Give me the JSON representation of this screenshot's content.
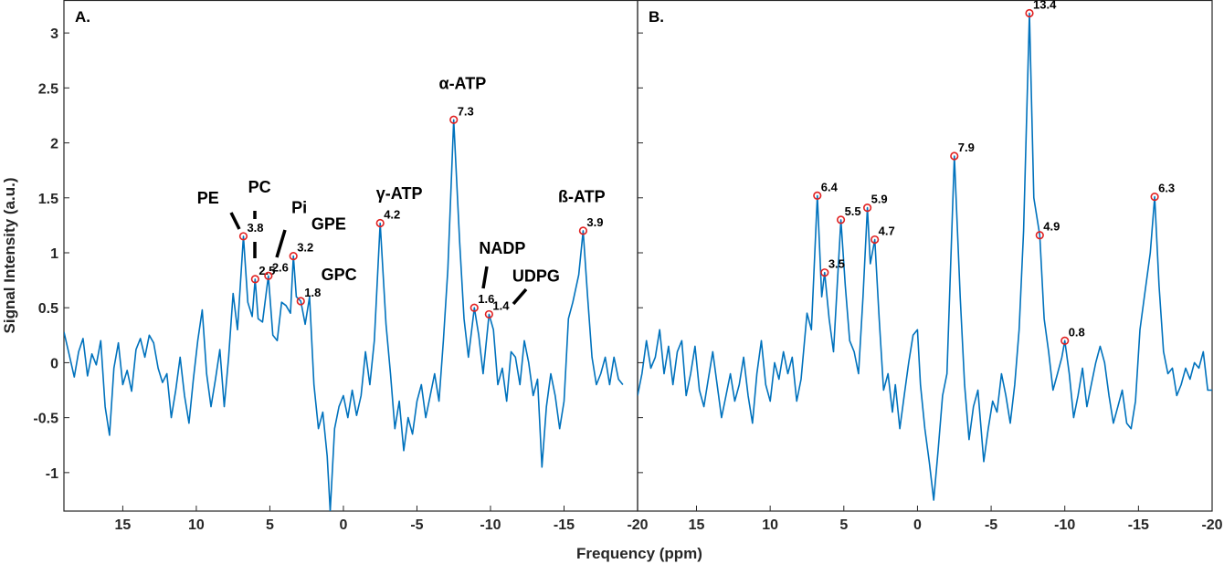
{
  "chart_data": {
    "type": "line",
    "xlabel": "Frequency (ppm)",
    "ylabel": "Signal Intensity (a.u.)",
    "xlim": [
      19,
      -20
    ],
    "ylim": [
      -1.35,
      3.3
    ],
    "x_reversed": true,
    "xticks": [
      15,
      10,
      5,
      0,
      -5,
      -10,
      -15,
      -20
    ],
    "xtick_labels": [
      "15",
      "10",
      "5",
      "0",
      "-5",
      "-10",
      "-15",
      "-20"
    ],
    "yticks": [
      -1,
      -0.5,
      0,
      0.5,
      1,
      1.5,
      2,
      2.5,
      3
    ],
    "ytick_labels": [
      "-1",
      "-0.5",
      "0",
      "0.5",
      "1",
      "1.5",
      "2",
      "2.5",
      "3"
    ],
    "line_color": "#0072BD",
    "marker_color": "#E02020",
    "panels": [
      {
        "label": "A.",
        "peaks": [
          {
            "x": 6.8,
            "y": 1.15,
            "label": "3.8"
          },
          {
            "x": 6.0,
            "y": 0.76,
            "label": "2.5"
          },
          {
            "x": 5.1,
            "y": 0.79,
            "label": "2.6"
          },
          {
            "x": 3.4,
            "y": 0.97,
            "label": "3.2"
          },
          {
            "x": 2.9,
            "y": 0.56,
            "label": "1.8"
          },
          {
            "x": -2.5,
            "y": 1.27,
            "label": "4.2"
          },
          {
            "x": -7.5,
            "y": 2.21,
            "label": "7.3"
          },
          {
            "x": -8.9,
            "y": 0.5,
            "label": "1.6"
          },
          {
            "x": -9.9,
            "y": 0.44,
            "label": "1.4"
          },
          {
            "x": -16.3,
            "y": 1.2,
            "label": "3.9"
          }
        ],
        "annotations": [
          {
            "text": "PE",
            "x": 9.2,
            "y": 1.45
          },
          {
            "text": "PC",
            "x": 5.7,
            "y": 1.55
          },
          {
            "text": "Pi",
            "x": 3.0,
            "y": 1.36
          },
          {
            "text": "GPE",
            "x": 1.0,
            "y": 1.21
          },
          {
            "text": "GPC",
            "x": 0.3,
            "y": 0.75
          },
          {
            "text": "γ-ATP",
            "x": -3.8,
            "y": 1.49
          },
          {
            "text": "α-ATP",
            "x": -8.1,
            "y": 2.49
          },
          {
            "text": "NADP",
            "x": -10.8,
            "y": 0.99
          },
          {
            "text": "UDPG",
            "x": -13.1,
            "y": 0.74
          },
          {
            "text": "ß-ATP",
            "x": -16.2,
            "y": 1.46
          }
        ],
        "trace": [
          [
            19.0,
            0.28
          ],
          [
            18.6,
            0.05
          ],
          [
            18.3,
            -0.13
          ],
          [
            18.0,
            0.1
          ],
          [
            17.7,
            0.22
          ],
          [
            17.4,
            -0.12
          ],
          [
            17.1,
            0.08
          ],
          [
            16.8,
            -0.02
          ],
          [
            16.5,
            0.2
          ],
          [
            16.2,
            -0.4
          ],
          [
            15.9,
            -0.66
          ],
          [
            15.6,
            -0.05
          ],
          [
            15.3,
            0.18
          ],
          [
            15.0,
            -0.2
          ],
          [
            14.7,
            -0.07
          ],
          [
            14.4,
            -0.26
          ],
          [
            14.1,
            0.12
          ],
          [
            13.8,
            0.22
          ],
          [
            13.5,
            0.05
          ],
          [
            13.2,
            0.25
          ],
          [
            12.9,
            0.18
          ],
          [
            12.6,
            -0.05
          ],
          [
            12.3,
            -0.18
          ],
          [
            12.0,
            -0.1
          ],
          [
            11.7,
            -0.5
          ],
          [
            11.4,
            -0.25
          ],
          [
            11.1,
            0.05
          ],
          [
            10.8,
            -0.3
          ],
          [
            10.5,
            -0.55
          ],
          [
            10.2,
            -0.15
          ],
          [
            9.9,
            0.2
          ],
          [
            9.6,
            0.48
          ],
          [
            9.3,
            -0.1
          ],
          [
            9.0,
            -0.4
          ],
          [
            8.7,
            -0.15
          ],
          [
            8.4,
            0.12
          ],
          [
            8.1,
            -0.4
          ],
          [
            7.8,
            0.05
          ],
          [
            7.5,
            0.63
          ],
          [
            7.2,
            0.3
          ],
          [
            6.8,
            1.15
          ],
          [
            6.5,
            0.55
          ],
          [
            6.2,
            0.42
          ],
          [
            6.0,
            0.76
          ],
          [
            5.8,
            0.4
          ],
          [
            5.5,
            0.37
          ],
          [
            5.1,
            0.79
          ],
          [
            4.8,
            0.25
          ],
          [
            4.5,
            0.2
          ],
          [
            4.2,
            0.55
          ],
          [
            3.9,
            0.52
          ],
          [
            3.6,
            0.45
          ],
          [
            3.4,
            0.97
          ],
          [
            3.2,
            0.6
          ],
          [
            2.9,
            0.56
          ],
          [
            2.6,
            0.35
          ],
          [
            2.3,
            0.6
          ],
          [
            2.0,
            -0.2
          ],
          [
            1.7,
            -0.6
          ],
          [
            1.4,
            -0.45
          ],
          [
            1.1,
            -0.85
          ],
          [
            0.9,
            -1.35
          ],
          [
            0.6,
            -0.6
          ],
          [
            0.3,
            -0.4
          ],
          [
            0.0,
            -0.3
          ],
          [
            -0.3,
            -0.5
          ],
          [
            -0.6,
            -0.25
          ],
          [
            -0.9,
            -0.48
          ],
          [
            -1.2,
            -0.3
          ],
          [
            -1.5,
            0.1
          ],
          [
            -1.8,
            -0.2
          ],
          [
            -2.1,
            0.2
          ],
          [
            -2.5,
            1.27
          ],
          [
            -2.9,
            0.35
          ],
          [
            -3.2,
            -0.1
          ],
          [
            -3.5,
            -0.6
          ],
          [
            -3.8,
            -0.35
          ],
          [
            -4.1,
            -0.8
          ],
          [
            -4.4,
            -0.5
          ],
          [
            -4.7,
            -0.65
          ],
          [
            -5.0,
            -0.35
          ],
          [
            -5.3,
            -0.2
          ],
          [
            -5.6,
            -0.5
          ],
          [
            -5.9,
            -0.3
          ],
          [
            -6.2,
            -0.1
          ],
          [
            -6.5,
            -0.35
          ],
          [
            -6.8,
            0.2
          ],
          [
            -7.1,
            0.85
          ],
          [
            -7.5,
            2.21
          ],
          [
            -7.9,
            1.1
          ],
          [
            -8.2,
            0.4
          ],
          [
            -8.5,
            0.05
          ],
          [
            -8.9,
            0.5
          ],
          [
            -9.2,
            0.25
          ],
          [
            -9.5,
            -0.1
          ],
          [
            -9.9,
            0.44
          ],
          [
            -10.2,
            0.3
          ],
          [
            -10.5,
            -0.2
          ],
          [
            -10.8,
            -0.05
          ],
          [
            -11.1,
            -0.35
          ],
          [
            -11.4,
            0.1
          ],
          [
            -11.7,
            0.05
          ],
          [
            -12.0,
            -0.2
          ],
          [
            -12.3,
            0.2
          ],
          [
            -12.6,
            0.0
          ],
          [
            -12.9,
            -0.3
          ],
          [
            -13.2,
            -0.15
          ],
          [
            -13.5,
            -0.95
          ],
          [
            -13.8,
            -0.4
          ],
          [
            -14.1,
            -0.1
          ],
          [
            -14.4,
            -0.3
          ],
          [
            -14.7,
            -0.6
          ],
          [
            -15.0,
            -0.35
          ],
          [
            -15.3,
            0.4
          ],
          [
            -15.6,
            0.55
          ],
          [
            -16.0,
            0.8
          ],
          [
            -16.3,
            1.2
          ],
          [
            -16.6,
            0.6
          ],
          [
            -16.9,
            0.05
          ],
          [
            -17.2,
            -0.2
          ],
          [
            -17.5,
            -0.1
          ],
          [
            -17.8,
            0.05
          ],
          [
            -18.1,
            -0.2
          ],
          [
            -18.4,
            0.05
          ],
          [
            -18.7,
            -0.15
          ],
          [
            -19.0,
            -0.2
          ]
        ]
      },
      {
        "label": "B.",
        "peaks": [
          {
            "x": 6.8,
            "y": 1.52,
            "label": "6.4"
          },
          {
            "x": 6.3,
            "y": 0.82,
            "label": "3.5"
          },
          {
            "x": 5.2,
            "y": 1.3,
            "label": "5.5"
          },
          {
            "x": 3.4,
            "y": 1.41,
            "label": "5.9"
          },
          {
            "x": 2.9,
            "y": 1.12,
            "label": "4.7"
          },
          {
            "x": -2.5,
            "y": 1.88,
            "label": "7.9"
          },
          {
            "x": -7.6,
            "y": 3.18,
            "label": "13.4"
          },
          {
            "x": -8.3,
            "y": 1.16,
            "label": "4.9"
          },
          {
            "x": -10.0,
            "y": 0.2,
            "label": "0.8"
          },
          {
            "x": -16.1,
            "y": 1.51,
            "label": "6.3"
          }
        ],
        "annotations": [],
        "trace": [
          [
            19.0,
            -0.3
          ],
          [
            18.7,
            -0.1
          ],
          [
            18.4,
            0.2
          ],
          [
            18.1,
            -0.05
          ],
          [
            17.8,
            0.05
          ],
          [
            17.5,
            0.3
          ],
          [
            17.2,
            -0.1
          ],
          [
            16.9,
            0.15
          ],
          [
            16.6,
            -0.2
          ],
          [
            16.3,
            0.1
          ],
          [
            16.0,
            0.2
          ],
          [
            15.7,
            -0.3
          ],
          [
            15.4,
            -0.1
          ],
          [
            15.1,
            0.15
          ],
          [
            14.8,
            -0.25
          ],
          [
            14.5,
            -0.4
          ],
          [
            14.2,
            -0.15
          ],
          [
            13.9,
            0.1
          ],
          [
            13.6,
            -0.2
          ],
          [
            13.3,
            -0.5
          ],
          [
            13.0,
            -0.3
          ],
          [
            12.7,
            -0.1
          ],
          [
            12.4,
            -0.35
          ],
          [
            12.1,
            -0.2
          ],
          [
            11.8,
            0.05
          ],
          [
            11.5,
            -0.3
          ],
          [
            11.2,
            -0.55
          ],
          [
            10.9,
            -0.1
          ],
          [
            10.6,
            0.2
          ],
          [
            10.3,
            -0.2
          ],
          [
            10.0,
            -0.35
          ],
          [
            9.7,
            0.0
          ],
          [
            9.4,
            -0.15
          ],
          [
            9.1,
            0.1
          ],
          [
            8.8,
            -0.1
          ],
          [
            8.5,
            0.05
          ],
          [
            8.2,
            -0.35
          ],
          [
            7.9,
            -0.15
          ],
          [
            7.5,
            0.45
          ],
          [
            7.2,
            0.3
          ],
          [
            6.8,
            1.52
          ],
          [
            6.5,
            0.6
          ],
          [
            6.3,
            0.82
          ],
          [
            6.0,
            0.4
          ],
          [
            5.7,
            0.1
          ],
          [
            5.2,
            1.3
          ],
          [
            4.9,
            0.7
          ],
          [
            4.6,
            0.2
          ],
          [
            4.3,
            0.1
          ],
          [
            4.0,
            -0.1
          ],
          [
            3.7,
            0.6
          ],
          [
            3.4,
            1.41
          ],
          [
            3.2,
            0.9
          ],
          [
            2.9,
            1.12
          ],
          [
            2.6,
            0.4
          ],
          [
            2.3,
            -0.25
          ],
          [
            2.0,
            -0.1
          ],
          [
            1.7,
            -0.45
          ],
          [
            1.5,
            -0.2
          ],
          [
            1.2,
            -0.6
          ],
          [
            0.9,
            -0.3
          ],
          [
            0.6,
            0.0
          ],
          [
            0.3,
            0.25
          ],
          [
            0.0,
            0.3
          ],
          [
            -0.2,
            -0.2
          ],
          [
            -0.5,
            -0.6
          ],
          [
            -0.8,
            -0.9
          ],
          [
            -1.1,
            -1.25
          ],
          [
            -1.4,
            -0.8
          ],
          [
            -1.7,
            -0.3
          ],
          [
            -2.0,
            -0.1
          ],
          [
            -2.5,
            1.88
          ],
          [
            -2.9,
            0.6
          ],
          [
            -3.2,
            -0.2
          ],
          [
            -3.5,
            -0.7
          ],
          [
            -3.8,
            -0.4
          ],
          [
            -4.1,
            -0.25
          ],
          [
            -4.5,
            -0.9
          ],
          [
            -4.8,
            -0.6
          ],
          [
            -5.1,
            -0.35
          ],
          [
            -5.4,
            -0.45
          ],
          [
            -5.7,
            -0.1
          ],
          [
            -6.0,
            -0.3
          ],
          [
            -6.3,
            -0.55
          ],
          [
            -6.6,
            -0.2
          ],
          [
            -6.9,
            0.3
          ],
          [
            -7.2,
            1.2
          ],
          [
            -7.6,
            3.18
          ],
          [
            -7.9,
            1.5
          ],
          [
            -8.3,
            1.16
          ],
          [
            -8.6,
            0.4
          ],
          [
            -8.9,
            0.1
          ],
          [
            -9.2,
            -0.25
          ],
          [
            -9.5,
            -0.1
          ],
          [
            -9.8,
            0.05
          ],
          [
            -10.0,
            0.2
          ],
          [
            -10.3,
            -0.1
          ],
          [
            -10.6,
            -0.5
          ],
          [
            -10.9,
            -0.3
          ],
          [
            -11.2,
            -0.05
          ],
          [
            -11.5,
            -0.4
          ],
          [
            -11.8,
            -0.2
          ],
          [
            -12.1,
            0.0
          ],
          [
            -12.4,
            0.15
          ],
          [
            -12.7,
            0.0
          ],
          [
            -13.0,
            -0.3
          ],
          [
            -13.3,
            -0.55
          ],
          [
            -13.6,
            -0.4
          ],
          [
            -13.9,
            -0.25
          ],
          [
            -14.2,
            -0.55
          ],
          [
            -14.5,
            -0.6
          ],
          [
            -14.8,
            -0.35
          ],
          [
            -15.1,
            0.3
          ],
          [
            -15.4,
            0.6
          ],
          [
            -15.8,
            1.0
          ],
          [
            -16.1,
            1.51
          ],
          [
            -16.4,
            0.7
          ],
          [
            -16.7,
            0.1
          ],
          [
            -17.0,
            -0.1
          ],
          [
            -17.3,
            -0.05
          ],
          [
            -17.6,
            -0.3
          ],
          [
            -17.9,
            -0.2
          ],
          [
            -18.2,
            -0.05
          ],
          [
            -18.5,
            -0.15
          ],
          [
            -18.8,
            0.0
          ],
          [
            -19.1,
            -0.05
          ],
          [
            -19.4,
            0.1
          ],
          [
            -19.7,
            -0.25
          ],
          [
            -20.0,
            -0.25
          ]
        ]
      }
    ]
  }
}
